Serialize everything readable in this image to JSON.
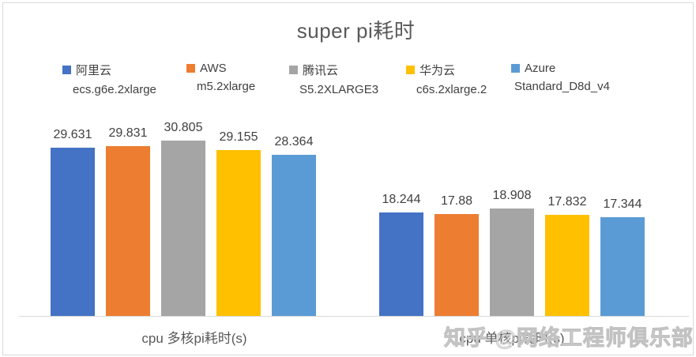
{
  "title": "super pi耗时",
  "watermark": "知乎 @网络工程师俱乐部",
  "chart_data": {
    "type": "bar",
    "title": "super pi耗时",
    "categories": [
      "cpu 多核pi耗时(s)",
      "cpu 单核pi耗时(s)"
    ],
    "series": [
      {
        "name": "阿里云",
        "instance": "ecs.g6e.2xlarge",
        "color": "#4472C4",
        "values": [
          29.631,
          18.244
        ]
      },
      {
        "name": "AWS",
        "instance": "m5.2xlarge",
        "color": "#ED7D31",
        "values": [
          29.831,
          17.88
        ]
      },
      {
        "name": "腾讯云",
        "instance": "S5.2XLARGE3",
        "color": "#A5A5A5",
        "values": [
          30.805,
          18.908
        ]
      },
      {
        "name": "华为云",
        "instance": "c6s.2xlarge.2",
        "color": "#FFC000",
        "values": [
          29.155,
          17.832
        ]
      },
      {
        "name": "Azure",
        "instance": "Standard_D8d_v4",
        "color": "#5B9BD5",
        "values": [
          28.364,
          17.344
        ]
      }
    ],
    "value_labels": true,
    "ylim": [
      0,
      31
    ],
    "grid": false,
    "legend_position": "top",
    "axis_color": "#d9d9d9"
  }
}
